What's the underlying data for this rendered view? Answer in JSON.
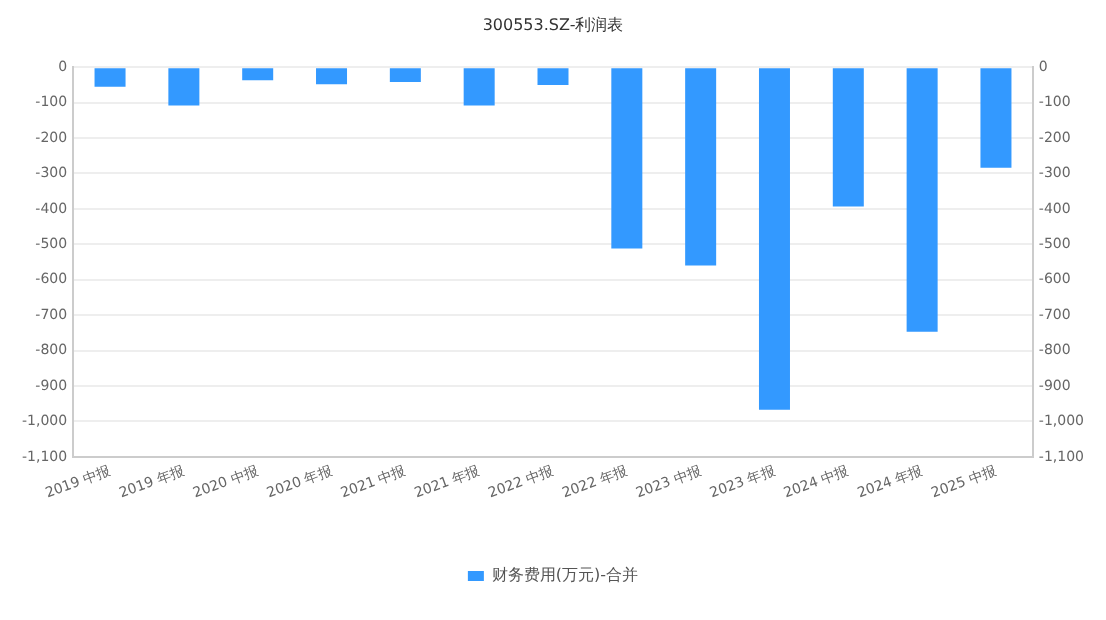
{
  "chart_data": {
    "type": "bar",
    "title": "300553.SZ-利润表",
    "categories": [
      "2019 中报",
      "2019 年报",
      "2020 中报",
      "2020 年报",
      "2021 中报",
      "2021 年报",
      "2022 中报",
      "2022 年报",
      "2023 中报",
      "2023 年报",
      "2024 中报",
      "2024 年报",
      "2025 中报"
    ],
    "series": [
      {
        "name": "财务费用(万元)-合并",
        "color": "#3399ff",
        "values": [
          -55,
          -108,
          -37,
          -48,
          -42,
          -108,
          -50,
          -512,
          -560,
          -967,
          -393,
          -747,
          -284
        ]
      }
    ],
    "ylim": [
      -1100,
      0
    ],
    "yticks": [
      {
        "value": 0,
        "label": "0"
      },
      {
        "value": -100,
        "label": "-100"
      },
      {
        "value": -200,
        "label": "-200"
      },
      {
        "value": -300,
        "label": "-300"
      },
      {
        "value": -400,
        "label": "-400"
      },
      {
        "value": -500,
        "label": "-500"
      },
      {
        "value": -600,
        "label": "-600"
      },
      {
        "value": -700,
        "label": "-700"
      },
      {
        "value": -800,
        "label": "-800"
      },
      {
        "value": -900,
        "label": "-900"
      },
      {
        "value": -1000,
        "label": "-1,000"
      },
      {
        "value": -1100,
        "label": "-1,100"
      }
    ],
    "y2lim": [
      -1100,
      0
    ],
    "y2ticks": [
      {
        "value": 0,
        "label": "0"
      },
      {
        "value": -100,
        "label": "-100"
      },
      {
        "value": -200,
        "label": "-200"
      },
      {
        "value": -300,
        "label": "-300"
      },
      {
        "value": -400,
        "label": "-400"
      },
      {
        "value": -500,
        "label": "-500"
      },
      {
        "value": -600,
        "label": "-600"
      },
      {
        "value": -700,
        "label": "-700"
      },
      {
        "value": -800,
        "label": "-800"
      },
      {
        "value": -900,
        "label": "-900"
      },
      {
        "value": -1000,
        "label": "-1,000"
      },
      {
        "value": -1100,
        "label": "-1,100"
      }
    ],
    "grid": "y",
    "legend": "bottom"
  }
}
